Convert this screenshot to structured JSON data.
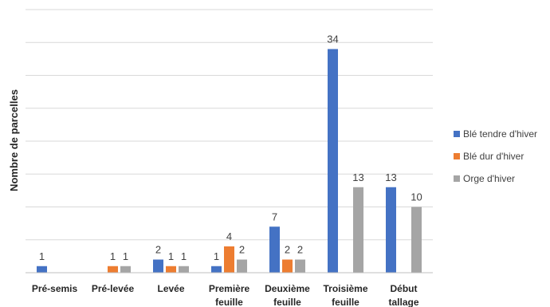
{
  "chart_data": {
    "type": "bar",
    "title": "",
    "xlabel": "",
    "ylabel": "Nombre de parcelles",
    "categories": [
      [
        "Pré-semis"
      ],
      [
        "Pré-levée"
      ],
      [
        "Levée"
      ],
      [
        "Première",
        "feuille"
      ],
      [
        "Deuxième",
        "feuille"
      ],
      [
        "Troisième",
        "feuille"
      ],
      [
        "Début",
        "tallage"
      ]
    ],
    "series": [
      {
        "name": "Blé tendre d'hiver",
        "color": "#4472c4",
        "values": [
          1,
          0,
          2,
          1,
          7,
          34,
          13
        ],
        "labels": [
          "1",
          "",
          "2",
          "1",
          "7",
          "34",
          "13"
        ]
      },
      {
        "name": "Blé dur d'hiver",
        "color": "#ed7d31",
        "values": [
          0,
          1,
          1,
          4,
          2,
          0,
          0
        ],
        "labels": [
          "",
          "1",
          "1",
          "4",
          "2",
          "",
          ""
        ]
      },
      {
        "name": "Orge d'hiver",
        "color": "#a5a5a5",
        "values": [
          0,
          1,
          1,
          2,
          2,
          13,
          10
        ],
        "labels": [
          "",
          "1",
          "1",
          "2",
          "2",
          "13",
          "10"
        ]
      }
    ],
    "ylim": [
      0,
      40
    ],
    "grid": true,
    "y_tick_labels_shown": false,
    "legend": "right"
  }
}
